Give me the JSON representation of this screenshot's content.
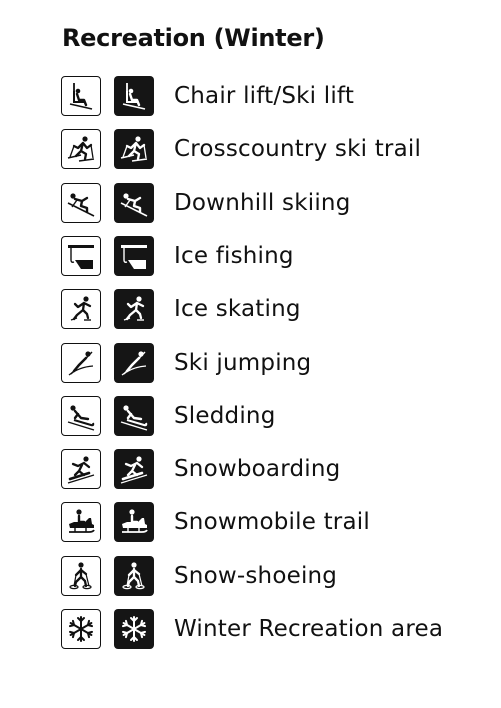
{
  "title": "Recreation (Winter)",
  "items": [
    {
      "label": "Chair lift/Ski lift",
      "icon": "chair-lift-icon"
    },
    {
      "label": "Crosscountry ski trail",
      "icon": "crosscountry-ski-icon"
    },
    {
      "label": "Downhill skiing",
      "icon": "downhill-skiing-icon"
    },
    {
      "label": "Ice fishing",
      "icon": "ice-fishing-icon"
    },
    {
      "label": "Ice skating",
      "icon": "ice-skating-icon"
    },
    {
      "label": "Ski jumping",
      "icon": "ski-jumping-icon"
    },
    {
      "label": "Sledding",
      "icon": "sledding-icon"
    },
    {
      "label": "Snowboarding",
      "icon": "snowboarding-icon"
    },
    {
      "label": "Snowmobile trail",
      "icon": "snowmobile-icon"
    },
    {
      "label": "Snow-shoeing",
      "icon": "snowshoeing-icon"
    },
    {
      "label": "Winter Recreation area",
      "icon": "snowflake-icon"
    }
  ],
  "colors": {
    "ink": "#111111",
    "solid_fill": "#151515",
    "background": "#ffffff"
  }
}
